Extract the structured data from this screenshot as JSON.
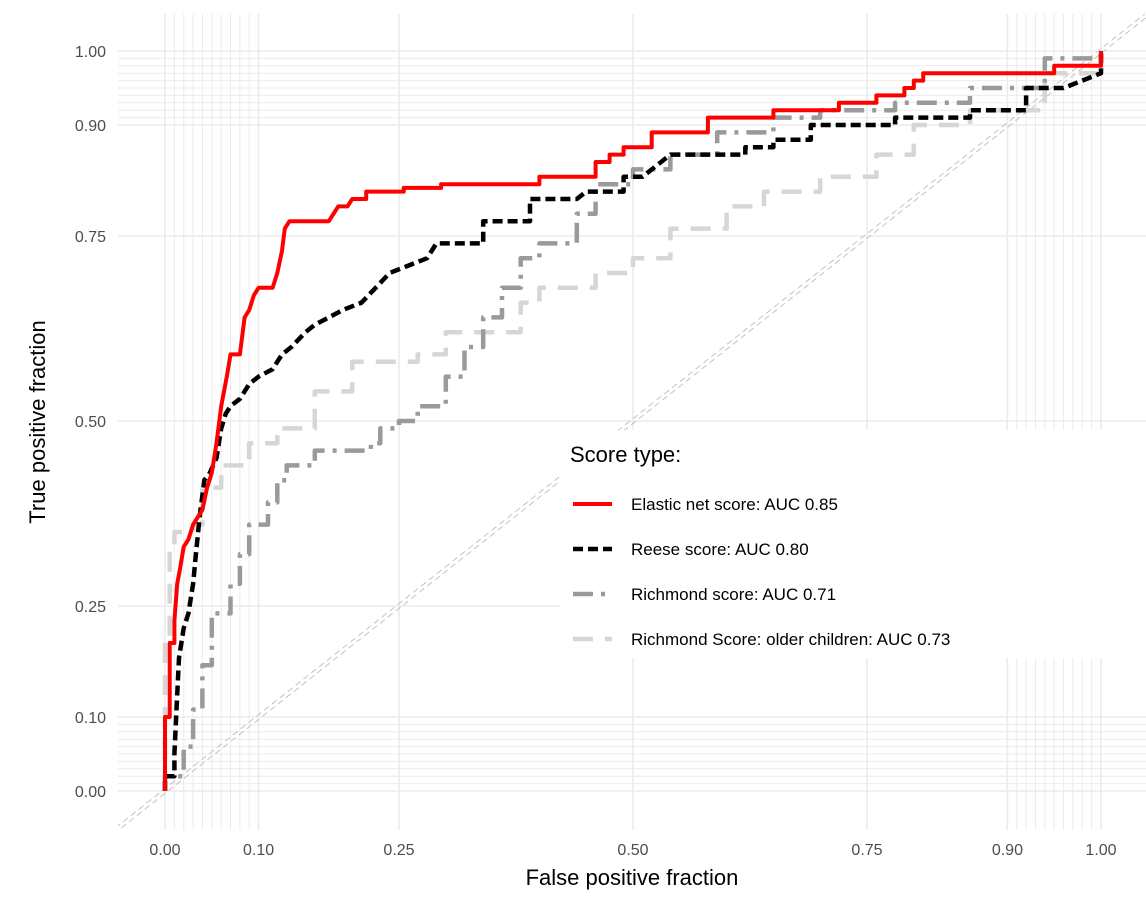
{
  "chart_data": {
    "type": "line",
    "xlabel": "False positive fraction",
    "ylabel": "True positive fraction",
    "xlim": [
      0,
      1
    ],
    "ylim": [
      0,
      1
    ],
    "grid": true,
    "legend": {
      "title": "Score type:",
      "placement": "inside-right"
    },
    "x_ticks": [
      {
        "value": 0.0,
        "label": "0.00"
      },
      {
        "value": 0.1,
        "label": "0.10"
      },
      {
        "value": 0.25,
        "label": "0.25"
      },
      {
        "value": 0.5,
        "label": "0.50"
      },
      {
        "value": 0.75,
        "label": "0.75"
      },
      {
        "value": 0.9,
        "label": "0.90"
      },
      {
        "value": 1.0,
        "label": "1.00"
      }
    ],
    "y_ticks": [
      {
        "value": 0.0,
        "label": "0.00"
      },
      {
        "value": 0.1,
        "label": "0.10"
      },
      {
        "value": 0.25,
        "label": "0.25"
      },
      {
        "value": 0.5,
        "label": "0.50"
      },
      {
        "value": 0.75,
        "label": "0.75"
      },
      {
        "value": 0.9,
        "label": "0.90"
      },
      {
        "value": 1.0,
        "label": "1.00"
      }
    ],
    "minor_grid": [
      0.01,
      0.02,
      0.03,
      0.04,
      0.05,
      0.06,
      0.07,
      0.08,
      0.09,
      0.91,
      0.92,
      0.93,
      0.94,
      0.95,
      0.96,
      0.97,
      0.98,
      0.99
    ],
    "reference_line": {
      "from": [
        -0.05,
        -0.05
      ],
      "to": [
        1.05,
        1.05
      ],
      "color": "#bdbdbd"
    },
    "series": [
      {
        "name": "Elastic net score: AUC 0.85",
        "color": "#ff0000",
        "style": "solid",
        "points": [
          [
            0.0,
            0.0
          ],
          [
            0.0,
            0.05
          ],
          [
            0.0,
            0.1
          ],
          [
            0.005,
            0.1
          ],
          [
            0.005,
            0.2
          ],
          [
            0.01,
            0.2
          ],
          [
            0.01,
            0.23
          ],
          [
            0.013,
            0.28
          ],
          [
            0.016,
            0.3
          ],
          [
            0.02,
            0.33
          ],
          [
            0.025,
            0.34
          ],
          [
            0.03,
            0.36
          ],
          [
            0.035,
            0.37
          ],
          [
            0.04,
            0.38
          ],
          [
            0.045,
            0.41
          ],
          [
            0.05,
            0.43
          ],
          [
            0.055,
            0.47
          ],
          [
            0.06,
            0.52
          ],
          [
            0.066,
            0.56
          ],
          [
            0.07,
            0.59
          ],
          [
            0.08,
            0.59
          ],
          [
            0.085,
            0.64
          ],
          [
            0.09,
            0.65
          ],
          [
            0.095,
            0.67
          ],
          [
            0.1,
            0.68
          ],
          [
            0.115,
            0.68
          ],
          [
            0.12,
            0.7
          ],
          [
            0.125,
            0.73
          ],
          [
            0.128,
            0.76
          ],
          [
            0.133,
            0.77
          ],
          [
            0.175,
            0.77
          ],
          [
            0.18,
            0.78
          ],
          [
            0.185,
            0.79
          ],
          [
            0.195,
            0.79
          ],
          [
            0.2,
            0.8
          ],
          [
            0.215,
            0.8
          ],
          [
            0.215,
            0.81
          ],
          [
            0.255,
            0.81
          ],
          [
            0.255,
            0.815
          ],
          [
            0.295,
            0.815
          ],
          [
            0.295,
            0.82
          ],
          [
            0.4,
            0.82
          ],
          [
            0.4,
            0.83
          ],
          [
            0.46,
            0.83
          ],
          [
            0.46,
            0.85
          ],
          [
            0.475,
            0.85
          ],
          [
            0.475,
            0.86
          ],
          [
            0.49,
            0.86
          ],
          [
            0.49,
            0.87
          ],
          [
            0.52,
            0.87
          ],
          [
            0.52,
            0.89
          ],
          [
            0.58,
            0.89
          ],
          [
            0.58,
            0.91
          ],
          [
            0.65,
            0.91
          ],
          [
            0.65,
            0.92
          ],
          [
            0.72,
            0.92
          ],
          [
            0.72,
            0.93
          ],
          [
            0.76,
            0.93
          ],
          [
            0.76,
            0.94
          ],
          [
            0.79,
            0.94
          ],
          [
            0.79,
            0.95
          ],
          [
            0.8,
            0.95
          ],
          [
            0.8,
            0.96
          ],
          [
            0.81,
            0.96
          ],
          [
            0.81,
            0.97
          ],
          [
            0.95,
            0.97
          ],
          [
            0.95,
            0.98
          ],
          [
            1.0,
            0.98
          ],
          [
            1.0,
            1.0
          ]
        ]
      },
      {
        "name": "Reese score: AUC 0.80",
        "color": "#000000",
        "style": "dashed",
        "points": [
          [
            0.0,
            0.0
          ],
          [
            0.0,
            0.02
          ],
          [
            0.01,
            0.02
          ],
          [
            0.01,
            0.05
          ],
          [
            0.013,
            0.13
          ],
          [
            0.015,
            0.18
          ],
          [
            0.02,
            0.22
          ],
          [
            0.025,
            0.24
          ],
          [
            0.03,
            0.28
          ],
          [
            0.033,
            0.32
          ],
          [
            0.037,
            0.37
          ],
          [
            0.042,
            0.42
          ],
          [
            0.048,
            0.43
          ],
          [
            0.055,
            0.45
          ],
          [
            0.06,
            0.49
          ],
          [
            0.065,
            0.51
          ],
          [
            0.07,
            0.52
          ],
          [
            0.08,
            0.53
          ],
          [
            0.085,
            0.54
          ],
          [
            0.09,
            0.55
          ],
          [
            0.1,
            0.56
          ],
          [
            0.115,
            0.57
          ],
          [
            0.125,
            0.59
          ],
          [
            0.135,
            0.6
          ],
          [
            0.15,
            0.62
          ],
          [
            0.16,
            0.63
          ],
          [
            0.175,
            0.64
          ],
          [
            0.19,
            0.65
          ],
          [
            0.21,
            0.66
          ],
          [
            0.225,
            0.68
          ],
          [
            0.24,
            0.7
          ],
          [
            0.26,
            0.71
          ],
          [
            0.28,
            0.72
          ],
          [
            0.29,
            0.74
          ],
          [
            0.34,
            0.74
          ],
          [
            0.34,
            0.77
          ],
          [
            0.39,
            0.77
          ],
          [
            0.39,
            0.8
          ],
          [
            0.44,
            0.8
          ],
          [
            0.45,
            0.81
          ],
          [
            0.49,
            0.81
          ],
          [
            0.49,
            0.83
          ],
          [
            0.51,
            0.83
          ],
          [
            0.53,
            0.85
          ],
          [
            0.54,
            0.86
          ],
          [
            0.59,
            0.86
          ],
          [
            0.62,
            0.86
          ],
          [
            0.62,
            0.87
          ],
          [
            0.65,
            0.87
          ],
          [
            0.65,
            0.88
          ],
          [
            0.69,
            0.88
          ],
          [
            0.69,
            0.9
          ],
          [
            0.78,
            0.9
          ],
          [
            0.78,
            0.91
          ],
          [
            0.86,
            0.91
          ],
          [
            0.86,
            0.92
          ],
          [
            0.92,
            0.92
          ],
          [
            0.92,
            0.95
          ],
          [
            0.96,
            0.95
          ],
          [
            1.0,
            0.97
          ],
          [
            1.0,
            1.0
          ]
        ]
      },
      {
        "name": "Richmond score: AUC 0.71",
        "color": "#9a9a9a",
        "style": "dashed",
        "points": [
          [
            0.0,
            0.0
          ],
          [
            0.0,
            0.02
          ],
          [
            0.02,
            0.02
          ],
          [
            0.02,
            0.06
          ],
          [
            0.03,
            0.06
          ],
          [
            0.03,
            0.11
          ],
          [
            0.04,
            0.11
          ],
          [
            0.04,
            0.17
          ],
          [
            0.05,
            0.17
          ],
          [
            0.05,
            0.24
          ],
          [
            0.07,
            0.24
          ],
          [
            0.07,
            0.28
          ],
          [
            0.08,
            0.28
          ],
          [
            0.08,
            0.32
          ],
          [
            0.09,
            0.32
          ],
          [
            0.09,
            0.36
          ],
          [
            0.11,
            0.36
          ],
          [
            0.11,
            0.39
          ],
          [
            0.12,
            0.39
          ],
          [
            0.12,
            0.42
          ],
          [
            0.13,
            0.42
          ],
          [
            0.13,
            0.44
          ],
          [
            0.16,
            0.44
          ],
          [
            0.16,
            0.46
          ],
          [
            0.22,
            0.46
          ],
          [
            0.22,
            0.47
          ],
          [
            0.23,
            0.47
          ],
          [
            0.23,
            0.49
          ],
          [
            0.25,
            0.49
          ],
          [
            0.25,
            0.5
          ],
          [
            0.27,
            0.5
          ],
          [
            0.27,
            0.52
          ],
          [
            0.3,
            0.52
          ],
          [
            0.3,
            0.56
          ],
          [
            0.32,
            0.56
          ],
          [
            0.32,
            0.6
          ],
          [
            0.34,
            0.6
          ],
          [
            0.34,
            0.64
          ],
          [
            0.36,
            0.64
          ],
          [
            0.36,
            0.68
          ],
          [
            0.38,
            0.68
          ],
          [
            0.38,
            0.72
          ],
          [
            0.4,
            0.72
          ],
          [
            0.4,
            0.74
          ],
          [
            0.44,
            0.74
          ],
          [
            0.44,
            0.78
          ],
          [
            0.46,
            0.78
          ],
          [
            0.46,
            0.82
          ],
          [
            0.5,
            0.82
          ],
          [
            0.5,
            0.84
          ],
          [
            0.54,
            0.84
          ],
          [
            0.54,
            0.86
          ],
          [
            0.59,
            0.86
          ],
          [
            0.59,
            0.89
          ],
          [
            0.65,
            0.89
          ],
          [
            0.65,
            0.91
          ],
          [
            0.7,
            0.91
          ],
          [
            0.7,
            0.92
          ],
          [
            0.78,
            0.92
          ],
          [
            0.78,
            0.93
          ],
          [
            0.86,
            0.93
          ],
          [
            0.86,
            0.95
          ],
          [
            0.94,
            0.95
          ],
          [
            0.94,
            0.99
          ],
          [
            1.0,
            0.99
          ],
          [
            1.0,
            1.0
          ]
        ]
      },
      {
        "name": "Richmond Score: older children: AUC 0.73",
        "color": "#d6d6d6",
        "style": "dashed",
        "points": [
          [
            0.0,
            0.0
          ],
          [
            0.0,
            0.2
          ],
          [
            0.005,
            0.2
          ],
          [
            0.005,
            0.33
          ],
          [
            0.01,
            0.33
          ],
          [
            0.01,
            0.35
          ],
          [
            0.03,
            0.35
          ],
          [
            0.03,
            0.36
          ],
          [
            0.04,
            0.36
          ],
          [
            0.04,
            0.41
          ],
          [
            0.06,
            0.41
          ],
          [
            0.06,
            0.44
          ],
          [
            0.09,
            0.44
          ],
          [
            0.09,
            0.47
          ],
          [
            0.12,
            0.47
          ],
          [
            0.12,
            0.49
          ],
          [
            0.16,
            0.49
          ],
          [
            0.16,
            0.54
          ],
          [
            0.2,
            0.54
          ],
          [
            0.2,
            0.58
          ],
          [
            0.27,
            0.58
          ],
          [
            0.27,
            0.59
          ],
          [
            0.3,
            0.59
          ],
          [
            0.3,
            0.62
          ],
          [
            0.38,
            0.62
          ],
          [
            0.38,
            0.66
          ],
          [
            0.4,
            0.66
          ],
          [
            0.4,
            0.68
          ],
          [
            0.46,
            0.68
          ],
          [
            0.46,
            0.7
          ],
          [
            0.5,
            0.7
          ],
          [
            0.5,
            0.72
          ],
          [
            0.54,
            0.72
          ],
          [
            0.54,
            0.76
          ],
          [
            0.6,
            0.76
          ],
          [
            0.6,
            0.79
          ],
          [
            0.64,
            0.79
          ],
          [
            0.64,
            0.81
          ],
          [
            0.7,
            0.81
          ],
          [
            0.7,
            0.83
          ],
          [
            0.76,
            0.83
          ],
          [
            0.76,
            0.86
          ],
          [
            0.8,
            0.86
          ],
          [
            0.8,
            0.9
          ],
          [
            0.86,
            0.9
          ],
          [
            0.86,
            0.92
          ],
          [
            0.94,
            0.92
          ],
          [
            0.94,
            0.97
          ],
          [
            1.0,
            0.97
          ],
          [
            1.0,
            1.0
          ]
        ]
      }
    ]
  }
}
